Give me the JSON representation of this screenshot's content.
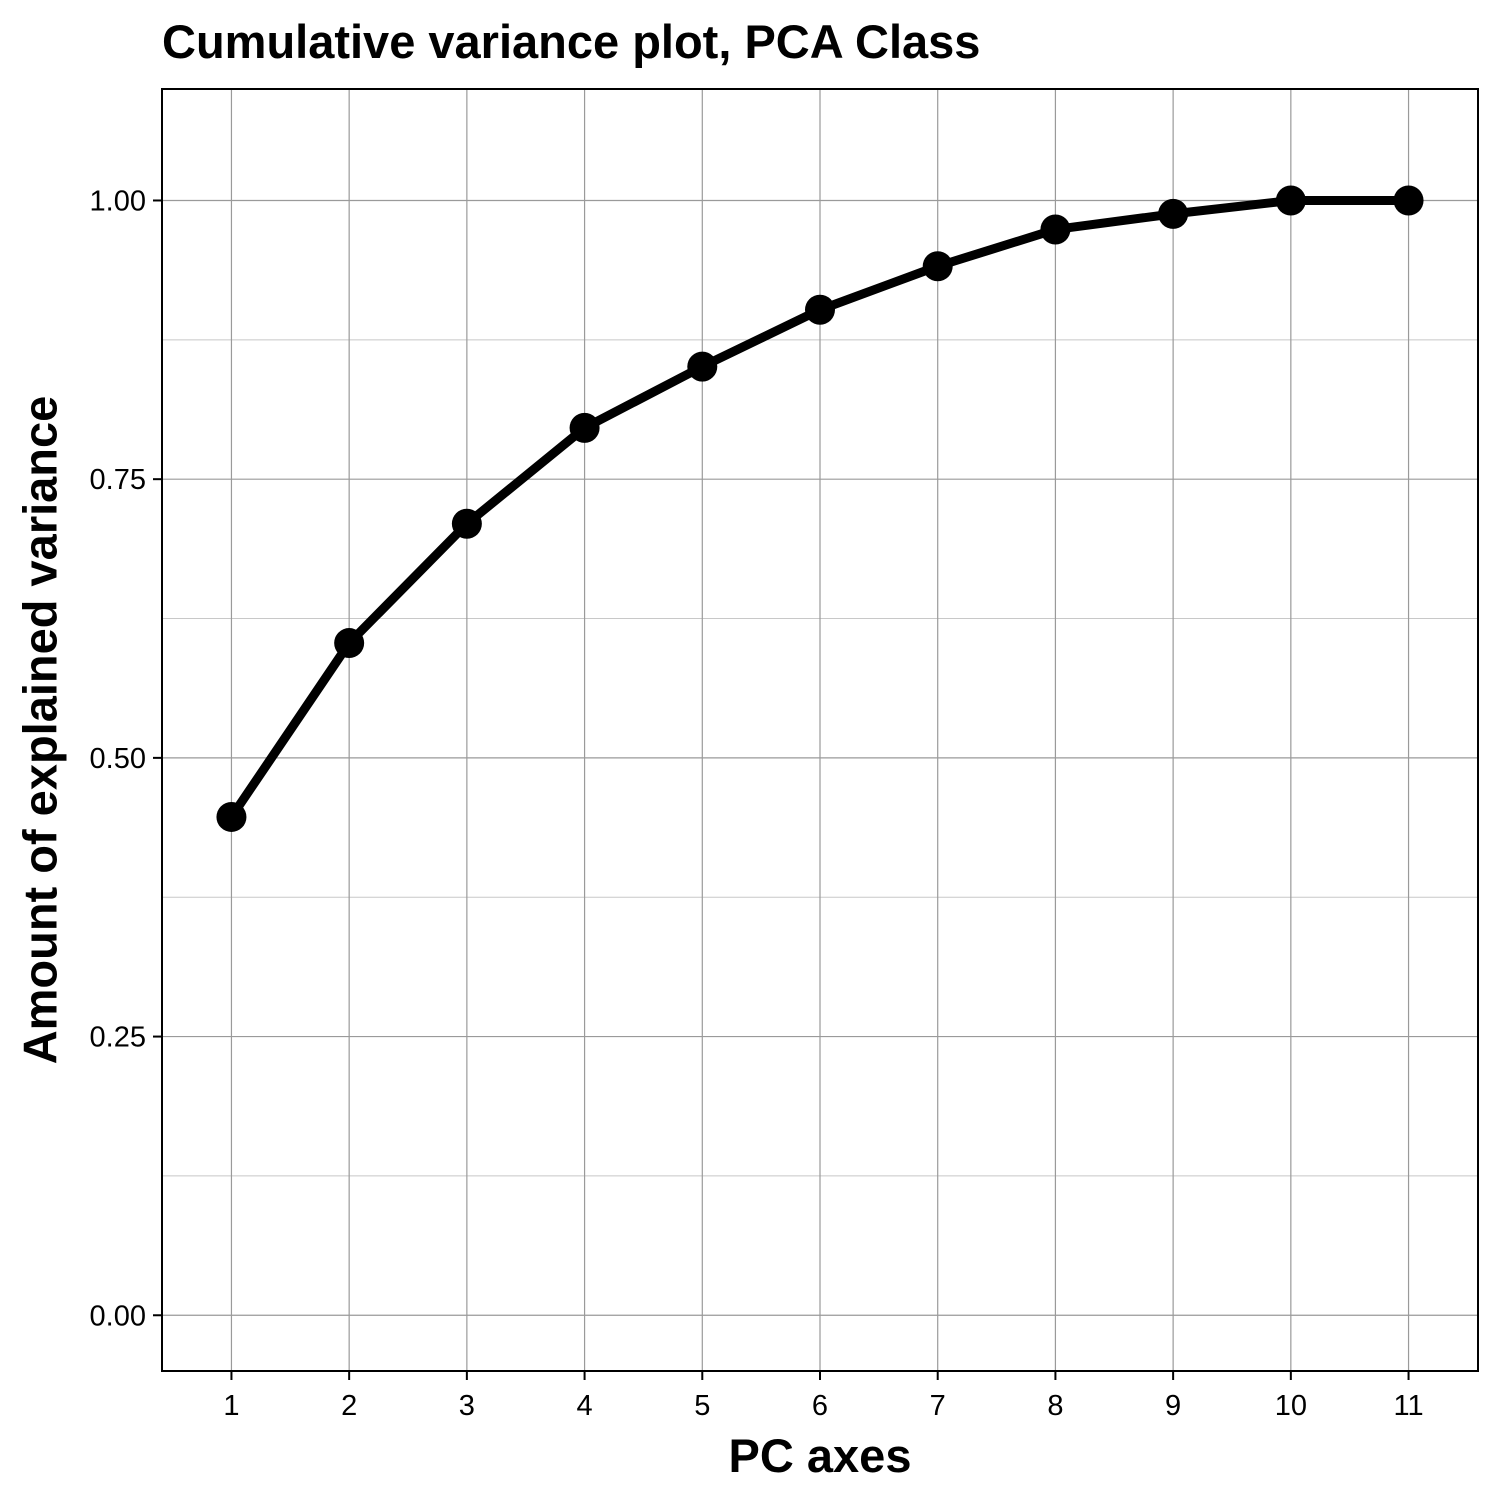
{
  "chart_data": {
    "type": "line",
    "title": "Cumulative variance plot, PCA Class",
    "xlabel": "PC axes",
    "ylabel": "Amount of explained variance",
    "x": [
      1,
      2,
      3,
      4,
      5,
      6,
      7,
      8,
      9,
      10,
      11
    ],
    "series": [
      {
        "values": [
          0.447,
          0.603,
          0.71,
          0.796,
          0.851,
          0.902,
          0.941,
          0.974,
          0.988,
          1.0,
          1.0
        ]
      }
    ],
    "x_ticks": [
      "1",
      "2",
      "3",
      "4",
      "5",
      "6",
      "7",
      "8",
      "9",
      "10",
      "11"
    ],
    "y_ticks": [
      "0.00",
      "0.25",
      "0.50",
      "0.75",
      "1.00"
    ],
    "xlim": [
      0.41,
      11.59
    ],
    "ylim": [
      -0.05,
      1.1
    ],
    "grid": true,
    "line_color": "#000000",
    "grid_color": "#9a9a9a"
  }
}
